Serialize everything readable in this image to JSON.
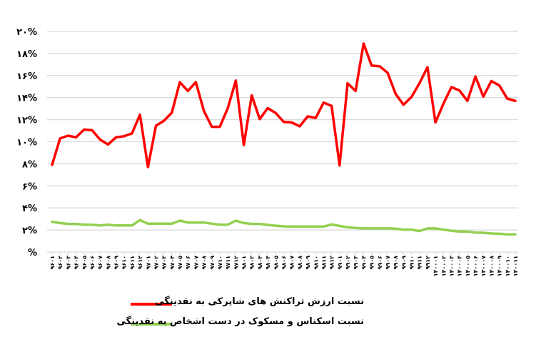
{
  "chart_data": {
    "type": "line",
    "title": "",
    "xlabel": "",
    "ylabel": "",
    "ylim": [
      0,
      20
    ],
    "y_ticks": [
      "%",
      "۲%",
      "۴%",
      "۶%",
      "۸%",
      "۱۰%",
      "۱۲%",
      "۱۴%",
      "۱۶%",
      "۱۸%",
      "۲۰%"
    ],
    "y_tick_values": [
      0,
      2,
      4,
      6,
      8,
      10,
      12,
      14,
      16,
      18,
      20
    ],
    "grid": true,
    "legend_position": "bottom",
    "categories": [
      "۹۶۰۱",
      "۹۶۰۲",
      "۹۶۰۳",
      "۹۶۰۴",
      "۹۶۰۵",
      "۹۶۰۶",
      "۹۶۰۷",
      "۹۶۰۸",
      "۹۶۰۹",
      "۹۶۱۰",
      "۹۶۱۱",
      "۹۶۱۲",
      "۹۷۰۱",
      "۹۷۰۲",
      "۹۷۰۳",
      "۹۷۰۴",
      "۹۷۰۵",
      "۹۷۰۶",
      "۹۷۰۷",
      "۹۷۰۸",
      "۹۷۰۹",
      "۹۷۱۰",
      "۹۷۱۱",
      "۹۷۱۲",
      "۹۸۰۱",
      "۹۸۰۲",
      "۹۸۰۳",
      "۹۸۰۴",
      "۹۸۰۵",
      "۹۸۰۶",
      "۹۸۰۷",
      "۹۸۰۸",
      "۹۸۰۹",
      "۹۸۱۰",
      "۹۸۱۱",
      "۹۸۱۲",
      "۹۹۰۱",
      "۹۹۰۲",
      "۹۹۰۳",
      "۹۹۰۴",
      "۹۹۰۵",
      "۹۹۰۶",
      "۹۹۰۷",
      "۹۹۰۸",
      "۹۹۰۹",
      "۹۹۱۰",
      "۹۹۱۱",
      "۹۹۱۲",
      "۱۴۰۰۰۱",
      "۱۴۰۰۰۲",
      "۱۴۰۰۰۳",
      "۱۴۰۰۰۴",
      "۱۴۰۰۰۵",
      "۱۴۰۰۰۶",
      "۱۴۰۰۰۷",
      "۱۴۰۰۰۸",
      "۱۴۰۰۰۹",
      "۱۴۰۰۱۰",
      "۱۴۰۰۱۱"
    ],
    "series": [
      {
        "name": "نسبت ارزش  تراکنش های شاپرکی به نقدینگی",
        "color": "#ff0000",
        "values": [
          7.9,
          10.3,
          10.55,
          10.4,
          11.1,
          11.05,
          10.2,
          9.75,
          10.4,
          10.5,
          10.75,
          12.45,
          7.7,
          11.45,
          11.9,
          12.65,
          15.4,
          14.6,
          15.4,
          12.8,
          11.35,
          11.35,
          13.05,
          15.55,
          9.7,
          14.2,
          12.05,
          13.05,
          12.6,
          11.8,
          11.75,
          11.4,
          12.3,
          12.15,
          13.55,
          13.25,
          7.85,
          15.3,
          14.6,
          18.9,
          16.9,
          16.85,
          16.25,
          14.35,
          13.35,
          14.05,
          15.3,
          16.75,
          11.75,
          13.45,
          14.95,
          14.65,
          13.7,
          15.9,
          14.1,
          15.5,
          15.1,
          13.9,
          13.7
        ]
      },
      {
        "name": "نسبت اسکناس و مسکوک در دست اشخاص  به نقدینگی",
        "color": "#92d050",
        "values": [
          2.74,
          2.63,
          2.55,
          2.55,
          2.48,
          2.48,
          2.41,
          2.48,
          2.41,
          2.41,
          2.41,
          2.9,
          2.57,
          2.57,
          2.57,
          2.57,
          2.85,
          2.67,
          2.67,
          2.67,
          2.57,
          2.48,
          2.48,
          2.85,
          2.63,
          2.55,
          2.55,
          2.46,
          2.39,
          2.33,
          2.31,
          2.31,
          2.31,
          2.31,
          2.31,
          2.5,
          2.37,
          2.24,
          2.18,
          2.14,
          2.14,
          2.14,
          2.14,
          2.12,
          2.03,
          2.03,
          1.9,
          2.14,
          2.14,
          2.03,
          1.93,
          1.86,
          1.86,
          1.77,
          1.75,
          1.68,
          1.66,
          1.6,
          1.6
        ]
      }
    ]
  }
}
